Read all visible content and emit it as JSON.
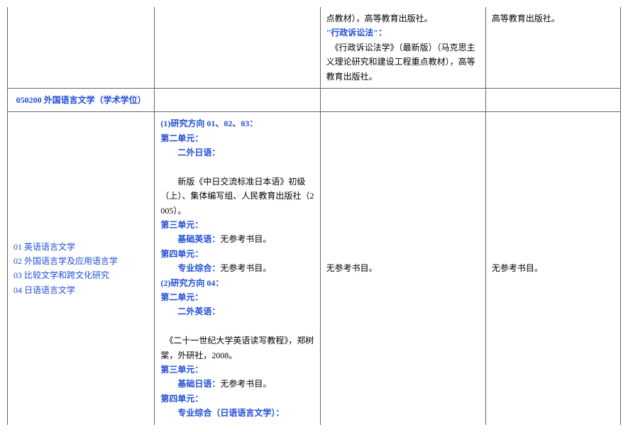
{
  "colors": {
    "blue": "#1f4dd8",
    "text": "#333333",
    "border": "#666666",
    "background": "#ffffff"
  },
  "typography": {
    "font_family": "SimSun",
    "font_size_pt": 9,
    "line_height": 1.7
  },
  "table": {
    "column_widths_pct": [
      24,
      27,
      27,
      22
    ],
    "rows": [
      {
        "type": "partial_top",
        "cells": {
          "c1": "",
          "c2": "",
          "c3_lines": [
            {
              "text": "点教材），高等教育出版社。",
              "style": "plain"
            },
            {
              "text": "\"行政诉讼法\"：",
              "style": "blue bold"
            },
            {
              "text": "　《行政诉讼法学》（最新版）（马克思主义理论研究和建设工程重点教材），高等教育出版社。",
              "style": "plain"
            }
          ],
          "c4": "高等教育出版社。"
        }
      },
      {
        "type": "header",
        "cells": {
          "c1": "050200 外国语言文学（学术学位）",
          "c2": "",
          "c3": "",
          "c4": ""
        }
      },
      {
        "type": "body",
        "cells": {
          "c1_lines": [
            {
              "text": "01 英语语言文学",
              "style": "blue"
            },
            {
              "text": "02 外国语言学及应用语言学",
              "style": "blue"
            },
            {
              "text": "03 比较文学和跨文化研究",
              "style": "blue"
            },
            {
              "text": "04 日语语言文学",
              "style": "blue"
            }
          ],
          "c2_lines": [
            {
              "text": "(1)研究方向 01、02、03：",
              "style": "blue bold"
            },
            {
              "text": "第二单元：",
              "style": "blue bold"
            },
            {
              "text": "二外日语：",
              "style": "blue bold indent2"
            },
            {
              "text": "　　新版《中日交流标准日本语》初级（上）、集体编写组、人民教育出版社（2005）。",
              "style": "plain"
            },
            {
              "text": "第三单元：",
              "style": "blue bold"
            },
            {
              "text_prefix": "基础英语：",
              "prefix_style": "blue bold indent2",
              "text_suffix": "无参考书目。",
              "suffix_style": "plain"
            },
            {
              "text": "第四单元：",
              "style": "blue bold"
            },
            {
              "text_prefix": "专业综合：",
              "prefix_style": "blue bold indent2",
              "text_suffix": "无参考书目。",
              "suffix_style": "plain"
            },
            {
              "text": "(2)研究方向 04：",
              "style": "blue bold"
            },
            {
              "text": "第二单元：",
              "style": "blue bold"
            },
            {
              "text": "二外英语：",
              "style": "blue bold indent2"
            },
            {
              "text": "　《二十一世纪大学英语读写教程》，郑树棠，外研社，2008。",
              "style": "plain"
            },
            {
              "text": "第三单元：",
              "style": "blue bold"
            },
            {
              "text_prefix": "基础日语：",
              "prefix_style": "blue bold indent2",
              "text_suffix": "无参考书目。",
              "suffix_style": "plain"
            },
            {
              "text": "第四单元：",
              "style": "blue bold"
            },
            {
              "text": "专业综合（日语语言文学）：",
              "style": "blue bold indent2"
            }
          ],
          "c3": "无参考书目。",
          "c4": "无参考书目。"
        }
      }
    ]
  }
}
